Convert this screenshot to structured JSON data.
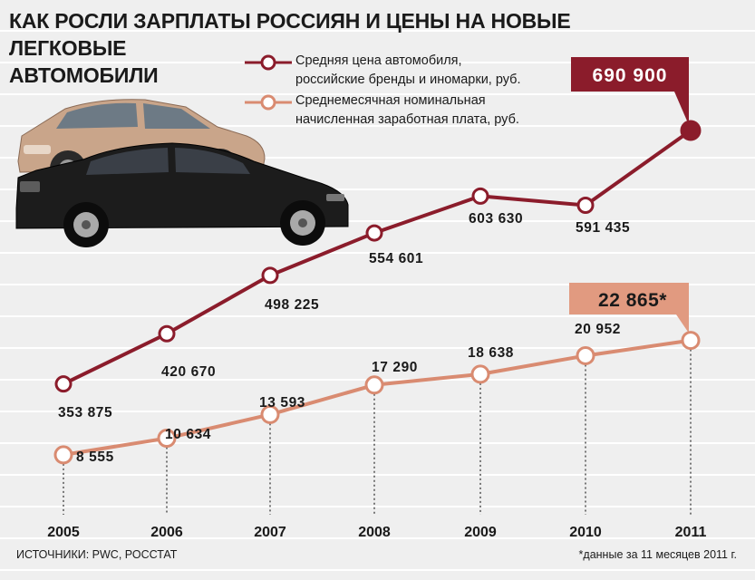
{
  "colors": {
    "price_line": "#8b1c2b",
    "wage_line": "#d98b71",
    "price_badge": "#8b1c2b",
    "wage_badge": "#e19a80"
  },
  "title": {
    "line1": "КАК РОСЛИ ЗАРПЛАТЫ РОССИЯН И ЦЕНЫ НА НОВЫЕ ЛЕГКОВЫЕ",
    "line2": "АВТОМОБИЛИ"
  },
  "legend": [
    {
      "text_line1": "Средняя цена автомобиля,",
      "text_line2": "российские бренды и иномарки, руб."
    },
    {
      "text_line1": "Среднемесячная номинальная",
      "text_line2": "начисленная заработная плата, руб."
    }
  ],
  "illustration": {
    "icon": "cars-illustration"
  },
  "chart_data": {
    "type": "line",
    "x": [
      "2005",
      "2006",
      "2007",
      "2008",
      "2009",
      "2010",
      "2011"
    ],
    "series": [
      {
        "name": "Средняя цена автомобиля, российские бренды и иномарки, руб.",
        "values": [
          353875,
          420670,
          498225,
          554601,
          603630,
          591435,
          690900
        ],
        "labels": [
          "353 875",
          "420 670",
          "498 225",
          "554 601",
          "603 630",
          "591 435",
          "690 900"
        ]
      },
      {
        "name": "Среднемесячная номинальная начисленная заработная плата, руб.",
        "values": [
          8555,
          10634,
          13593,
          17290,
          18638,
          20952,
          22865
        ],
        "labels": [
          "8 555",
          "10 634",
          "13 593",
          "17 290",
          "18 638",
          "20 952",
          "22 865*"
        ]
      }
    ]
  },
  "footer": {
    "sources": "ИСТОЧНИКИ: PWC, РОССТАТ",
    "note": "*данные за 11 месяцев 2011 г."
  }
}
